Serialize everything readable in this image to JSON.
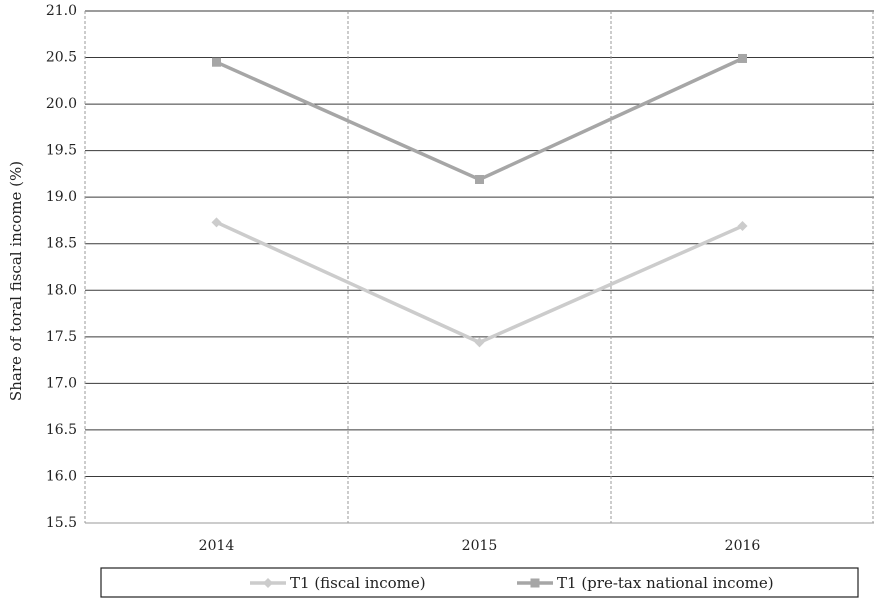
{
  "chart_data": {
    "type": "line",
    "title": "",
    "xlabel": "",
    "ylabel": "Share of toral fiscal income  (%)",
    "categories": [
      "2014",
      "2015",
      "2016"
    ],
    "ylim": [
      15.5,
      21.0
    ],
    "ytick_step": 0.5,
    "yticks": [
      "15.5",
      "16.0",
      "16.5",
      "17.0",
      "17.5",
      "18.0",
      "18.5",
      "19.0",
      "19.5",
      "20.0",
      "20.5",
      "21.0"
    ],
    "grid": "horizontal solid, vertical dashed between categories",
    "legend_position": "bottom",
    "series": [
      {
        "name": "T1 (fiscal income)",
        "marker": "diamond",
        "color": "#cccccc",
        "values": [
          18.73,
          17.44,
          18.69
        ]
      },
      {
        "name": "T1 (pre-tax national income)",
        "marker": "square",
        "color": "#a6a6a6",
        "values": [
          20.45,
          19.19,
          20.49
        ]
      }
    ]
  }
}
